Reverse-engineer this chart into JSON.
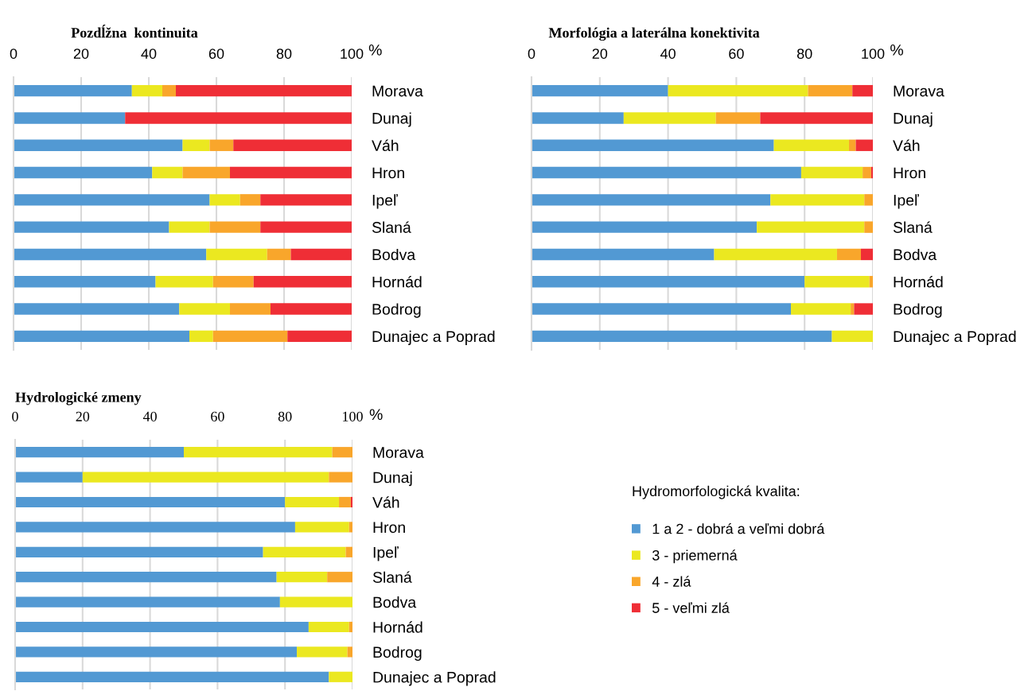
{
  "chart_data": [
    {
      "type": "bar",
      "orientation": "horizontal",
      "stacked": true,
      "title": "Pozdĺžna  kontinuita",
      "xlabel": "%",
      "categories": [
        "Morava",
        "Dunaj",
        "Váh",
        "Hron",
        "Ipeľ",
        "Slaná",
        "Bodva",
        "Hornád",
        "Bodrog",
        "Dunajec a Poprad"
      ],
      "xlim": [
        0,
        100
      ],
      "xticks": [
        0,
        20,
        40,
        60,
        80,
        100
      ],
      "grid": "x",
      "legend": "bottom right",
      "legend_title": "Hydromorfologická kvalita:",
      "series": [
        {
          "name": "1 a 2 - dobrá a veľmi dobrá",
          "color": "#5299d3",
          "values": [
            35,
            33,
            50,
            41,
            58,
            46,
            57,
            42,
            49,
            52
          ]
        },
        {
          "name": "3 - priemerná",
          "color": "#ebe820",
          "values": [
            9,
            0,
            8,
            9,
            9,
            12,
            18,
            17,
            15,
            7
          ]
        },
        {
          "name": "4 - zlá",
          "color": "#f9a62b",
          "values": [
            4,
            0,
            7,
            14,
            6,
            15,
            7,
            12,
            12,
            22
          ]
        },
        {
          "name": "5 - veľmi zlá",
          "color": "#ef2e36",
          "values": [
            52,
            67,
            35,
            36,
            27,
            27,
            18,
            29,
            24,
            19
          ]
        }
      ]
    },
    {
      "type": "bar",
      "orientation": "horizontal",
      "stacked": true,
      "title": "Morfológia a laterálna konektivita",
      "xlabel": "%",
      "categories": [
        "Morava",
        "Dunaj",
        "Váh",
        "Hron",
        "Ipeľ",
        "Slaná",
        "Bodva",
        "Hornád",
        "Bodrog",
        "Dunajec a Poprad"
      ],
      "xlim": [
        0,
        100
      ],
      "xticks": [
        0,
        20,
        40,
        60,
        80,
        100
      ],
      "grid": "x",
      "series": [
        {
          "color": "#5299d3",
          "values": [
            40,
            27,
            71,
            79,
            70,
            66,
            53.5,
            80,
            76,
            88
          ]
        },
        {
          "color": "#ebe820",
          "values": [
            41,
            27,
            22,
            18,
            27.5,
            31.5,
            36,
            19,
            17.5,
            12
          ]
        },
        {
          "color": "#f9a62b",
          "values": [
            13,
            13,
            2,
            2.5,
            2.5,
            2.5,
            7,
            1,
            1,
            0
          ]
        },
        {
          "color": "#ef2e36",
          "values": [
            6,
            33,
            5,
            0.5,
            0,
            0,
            3.5,
            0,
            5.5,
            0
          ]
        }
      ]
    },
    {
      "type": "bar",
      "orientation": "horizontal",
      "stacked": true,
      "title": "Hydrologické zmeny",
      "xlabel": "%",
      "categories": [
        "Morava",
        "Dunaj",
        "Váh",
        "Hron",
        "Ipeľ",
        "Slaná",
        "Bodva",
        "Hornád",
        "Bodrog",
        "Dunajec a Poprad"
      ],
      "xlim": [
        0,
        100
      ],
      "xticks": [
        0,
        20,
        40,
        60,
        80,
        100
      ],
      "grid": "x",
      "series": [
        {
          "color": "#5299d3",
          "values": [
            50,
            20,
            80,
            83,
            73.5,
            77.5,
            78.5,
            87,
            83.5,
            93
          ]
        },
        {
          "color": "#ebe820",
          "values": [
            44,
            73,
            16,
            16,
            24.5,
            15,
            21.5,
            12,
            15,
            7
          ]
        },
        {
          "color": "#f9a62b",
          "values": [
            6,
            7,
            3.5,
            1,
            2,
            7.5,
            0,
            1,
            1.5,
            0
          ]
        },
        {
          "color": "#ef2e36",
          "values": [
            0,
            0,
            0.5,
            0,
            0,
            0,
            0,
            0,
            0,
            0
          ]
        }
      ]
    }
  ]
}
